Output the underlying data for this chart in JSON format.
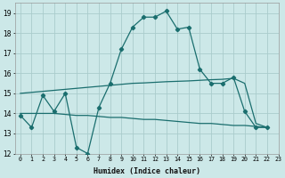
{
  "xlabel": "Humidex (Indice chaleur)",
  "xlim": [
    -0.5,
    23
  ],
  "ylim": [
    12,
    19.5
  ],
  "yticks": [
    12,
    13,
    14,
    15,
    16,
    17,
    18,
    19
  ],
  "background_color": "#cce8e8",
  "grid_color": "#aacccc",
  "line_color": "#1a6e6e",
  "line_main_x": [
    0,
    1,
    2,
    3,
    4,
    5,
    6,
    7,
    8,
    9,
    10,
    11,
    12,
    13,
    14,
    15,
    16,
    17,
    18,
    19,
    20,
    21,
    22
  ],
  "line_main_y": [
    13.9,
    13.3,
    14.9,
    14.1,
    15.0,
    12.3,
    12.0,
    14.3,
    15.5,
    17.2,
    18.3,
    18.8,
    18.8,
    19.1,
    18.2,
    18.3,
    16.2,
    15.5,
    15.5,
    15.8,
    14.1,
    13.3,
    13.3
  ],
  "line_smooth_x": [
    0,
    1,
    2,
    3,
    4,
    5,
    6,
    7,
    8,
    9,
    10,
    11,
    12,
    13,
    14,
    15,
    16,
    17,
    18,
    19,
    20,
    21,
    22
  ],
  "line_smooth_y": [
    15.0,
    15.05,
    15.1,
    15.15,
    15.2,
    15.25,
    15.3,
    15.35,
    15.4,
    15.45,
    15.5,
    15.52,
    15.55,
    15.58,
    15.6,
    15.62,
    15.65,
    15.68,
    15.7,
    15.75,
    15.5,
    13.5,
    13.3
  ],
  "line_flat_x": [
    0,
    1,
    2,
    3,
    4,
    5,
    6,
    7,
    8,
    9,
    10,
    11,
    12,
    13,
    14,
    15,
    16,
    17,
    18,
    19,
    20,
    21,
    22
  ],
  "line_flat_y": [
    14.0,
    14.0,
    14.0,
    14.0,
    13.95,
    13.9,
    13.9,
    13.85,
    13.8,
    13.8,
    13.75,
    13.7,
    13.7,
    13.65,
    13.6,
    13.55,
    13.5,
    13.5,
    13.45,
    13.4,
    13.4,
    13.35,
    13.3
  ]
}
